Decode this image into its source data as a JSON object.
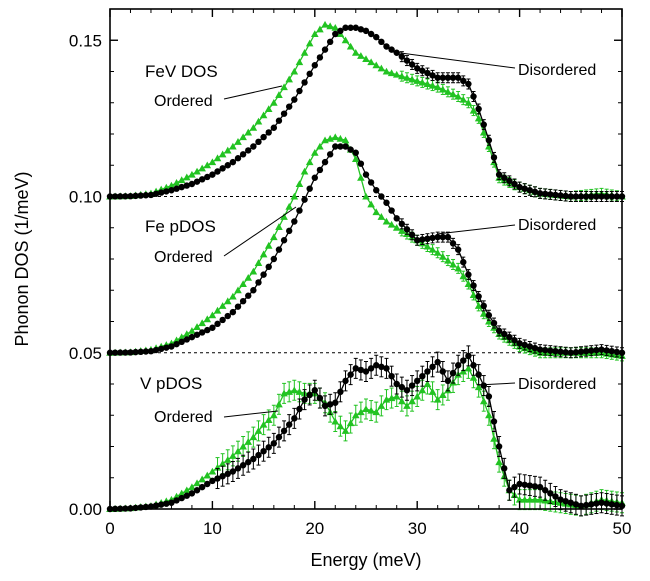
{
  "chart_data": {
    "type": "line",
    "title": "",
    "xlabel": "Energy (meV)",
    "ylabel": "Phonon DOS (1/meV)",
    "xlim": [
      0,
      50
    ],
    "ylim": [
      0,
      0.16
    ],
    "x_ticks": [
      0,
      10,
      20,
      30,
      40,
      50
    ],
    "x_tick_labels": [
      "0",
      "10",
      "20",
      "30",
      "40",
      "50"
    ],
    "y_ticks": [
      0,
      0.05,
      0.1,
      0.15
    ],
    "y_tick_labels": [
      "0.00",
      "0.05",
      "0.10",
      "0.15"
    ],
    "reference_lines": [
      0.05,
      0.1
    ],
    "grid": false,
    "legend": "none",
    "colors": {
      "Ordered": "#22c322",
      "Disordered": "#000000"
    },
    "panels": [
      {
        "label": "FeV DOS",
        "offset": 0.1,
        "series": [
          {
            "name": "Ordered",
            "marker": "triangle",
            "x": [
              0,
              2,
              4,
              6,
              8,
              10,
              12,
              14,
              16,
              18,
              19,
              20,
              21,
              22,
              23,
              24,
              25,
              26,
              27,
              28,
              30,
              32,
              34,
              35,
              36,
              37,
              38,
              40,
              42,
              45,
              48,
              50
            ],
            "y": [
              0.1,
              0.1002,
              0.101,
              0.1035,
              0.107,
              0.111,
              0.116,
              0.122,
              0.13,
              0.14,
              0.146,
              0.152,
              0.155,
              0.154,
              0.15,
              0.146,
              0.144,
              0.142,
              0.14,
              0.139,
              0.137,
              0.135,
              0.132,
              0.13,
              0.125,
              0.116,
              0.106,
              0.103,
              0.101,
              0.1,
              0.101,
              0.1
            ]
          },
          {
            "name": "Disordered",
            "marker": "circle",
            "x": [
              0,
              2,
              4,
              6,
              8,
              10,
              12,
              14,
              16,
              18,
              20,
              22,
              23,
              24,
              25,
              26,
              27,
              28,
              30,
              32,
              34,
              35,
              36,
              37,
              38,
              40,
              42,
              45,
              48,
              50
            ],
            "y": [
              0.1,
              0.1001,
              0.1005,
              0.102,
              0.104,
              0.107,
              0.111,
              0.116,
              0.122,
              0.131,
              0.142,
              0.152,
              0.154,
              0.154,
              0.153,
              0.151,
              0.148,
              0.146,
              0.141,
              0.138,
              0.138,
              0.136,
              0.128,
              0.118,
              0.107,
              0.103,
              0.101,
              0.1,
              0.1,
              0.1
            ]
          }
        ]
      },
      {
        "label": "Fe pDOS",
        "offset": 0.05,
        "series": [
          {
            "name": "Ordered",
            "marker": "triangle",
            "x": [
              0,
              2,
              4,
              6,
              8,
              10,
              12,
              14,
              16,
              18,
              19,
              20,
              21,
              22,
              23,
              24,
              25,
              26,
              27,
              28,
              30,
              32,
              34,
              35,
              36,
              37,
              38,
              40,
              42,
              45,
              48,
              50
            ],
            "y": [
              0.05,
              0.0502,
              0.051,
              0.053,
              0.057,
              0.062,
              0.068,
              0.076,
              0.087,
              0.1,
              0.108,
              0.114,
              0.118,
              0.119,
              0.118,
              0.112,
              0.1,
              0.095,
              0.092,
              0.09,
              0.086,
              0.082,
              0.077,
              0.072,
              0.065,
              0.06,
              0.056,
              0.052,
              0.05,
              0.05,
              0.05,
              0.049
            ]
          },
          {
            "name": "Disordered",
            "marker": "circle",
            "x": [
              0,
              2,
              4,
              6,
              8,
              10,
              12,
              14,
              16,
              18,
              20,
              22,
              23,
              24,
              25,
              26,
              27,
              28,
              30,
              32,
              33,
              34,
              35,
              36,
              37,
              38,
              40,
              42,
              45,
              48,
              50
            ],
            "y": [
              0.05,
              0.0501,
              0.0505,
              0.052,
              0.055,
              0.058,
              0.063,
              0.07,
              0.08,
              0.092,
              0.106,
              0.116,
              0.116,
              0.114,
              0.107,
              0.102,
              0.098,
              0.093,
              0.086,
              0.087,
              0.087,
              0.083,
              0.075,
              0.068,
              0.062,
              0.057,
              0.053,
              0.051,
              0.05,
              0.051,
              0.05
            ]
          }
        ]
      },
      {
        "label": "V pDOS",
        "offset": 0,
        "series": [
          {
            "name": "Ordered",
            "marker": "triangle",
            "x": [
              0,
              2,
              4,
              6,
              8,
              10,
              12,
              14,
              15,
              16,
              17,
              18,
              19,
              20,
              21,
              22,
              23,
              24,
              25,
              26,
              27,
              28,
              29,
              30,
              31,
              32,
              33,
              34,
              35,
              36,
              37,
              38,
              39,
              40,
              42,
              44,
              46,
              48,
              50
            ],
            "y": [
              0,
              0.0003,
              0.001,
              0.003,
              0.007,
              0.012,
              0.017,
              0.023,
              0.027,
              0.03,
              0.037,
              0.038,
              0.037,
              0.037,
              0.034,
              0.028,
              0.025,
              0.03,
              0.032,
              0.031,
              0.035,
              0.036,
              0.033,
              0.036,
              0.04,
              0.035,
              0.038,
              0.043,
              0.045,
              0.039,
              0.03,
              0.015,
              0.006,
              0.003,
              0.003,
              0.002,
              0.001,
              0.003,
              0.002
            ]
          },
          {
            "name": "Disordered",
            "marker": "circle",
            "x": [
              0,
              2,
              4,
              6,
              8,
              10,
              12,
              14,
              16,
              17,
              18,
              19,
              20,
              21,
              22,
              23,
              24,
              25,
              26,
              27,
              28,
              29,
              30,
              31,
              32,
              33,
              34,
              35,
              36,
              37,
              38,
              39,
              40,
              42,
              44,
              46,
              48,
              50
            ],
            "y": [
              0,
              0.0002,
              0.0008,
              0.002,
              0.005,
              0.009,
              0.012,
              0.016,
              0.021,
              0.025,
              0.029,
              0.035,
              0.038,
              0.033,
              0.034,
              0.041,
              0.045,
              0.044,
              0.046,
              0.045,
              0.04,
              0.038,
              0.041,
              0.044,
              0.047,
              0.041,
              0.046,
              0.049,
              0.043,
              0.036,
              0.02,
              0.006,
              0.008,
              0.007,
              0.003,
              0.001,
              0.002,
              0.001
            ]
          }
        ]
      }
    ],
    "annotations": [
      {
        "text": "Disordered",
        "panel": 0
      },
      {
        "text": "Ordered",
        "panel": 0
      },
      {
        "text": "Disordered",
        "panel": 1
      },
      {
        "text": "Ordered",
        "panel": 1
      },
      {
        "text": "Disordered",
        "panel": 2
      },
      {
        "text": "Ordered",
        "panel": 2
      }
    ]
  }
}
